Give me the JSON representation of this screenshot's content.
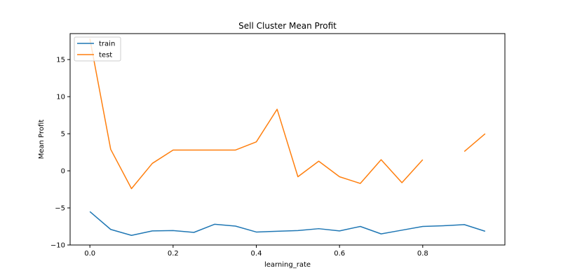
{
  "chart_data": {
    "type": "line",
    "title": "Sell Cluster Mean Profit",
    "xlabel": "learning_rate",
    "ylabel": "Mean Profit",
    "xlim": [
      -0.0475,
      0.9975
    ],
    "ylim": [
      -10,
      18.5
    ],
    "xticks": [
      0.0,
      0.2,
      0.4,
      0.6,
      0.8
    ],
    "xtick_labels": [
      "0.0",
      "0.2",
      "0.4",
      "0.6",
      "0.8"
    ],
    "yticks": [
      -10,
      -5,
      0,
      5,
      10,
      15
    ],
    "ytick_labels": [
      "−10",
      "−5",
      "0",
      "5",
      "10",
      "15"
    ],
    "grid": false,
    "legend_position": "top-left",
    "x": [
      0.0,
      0.05,
      0.1,
      0.15,
      0.2,
      0.25,
      0.3,
      0.35,
      0.4,
      0.45,
      0.5,
      0.55,
      0.6,
      0.65,
      0.7,
      0.75,
      0.8,
      0.85,
      0.9,
      0.95
    ],
    "series": [
      {
        "name": "train",
        "color": "#1f77b4",
        "values": [
          -5.5,
          -7.9,
          -8.7,
          -8.1,
          -8.05,
          -8.3,
          -7.2,
          -7.45,
          -8.25,
          -8.15,
          -8.05,
          -7.8,
          -8.1,
          -7.5,
          -8.5,
          -8.0,
          -7.5,
          -7.4,
          -7.25,
          -8.15
        ]
      },
      {
        "name": "test",
        "color": "#ff7f0e",
        "values": [
          17.8,
          2.9,
          -2.4,
          1.0,
          2.8,
          2.8,
          2.8,
          2.8,
          3.9,
          8.3,
          -0.8,
          1.3,
          -0.8,
          -1.7,
          1.5,
          -1.6,
          1.5,
          null,
          2.6,
          5.0
        ]
      }
    ]
  }
}
